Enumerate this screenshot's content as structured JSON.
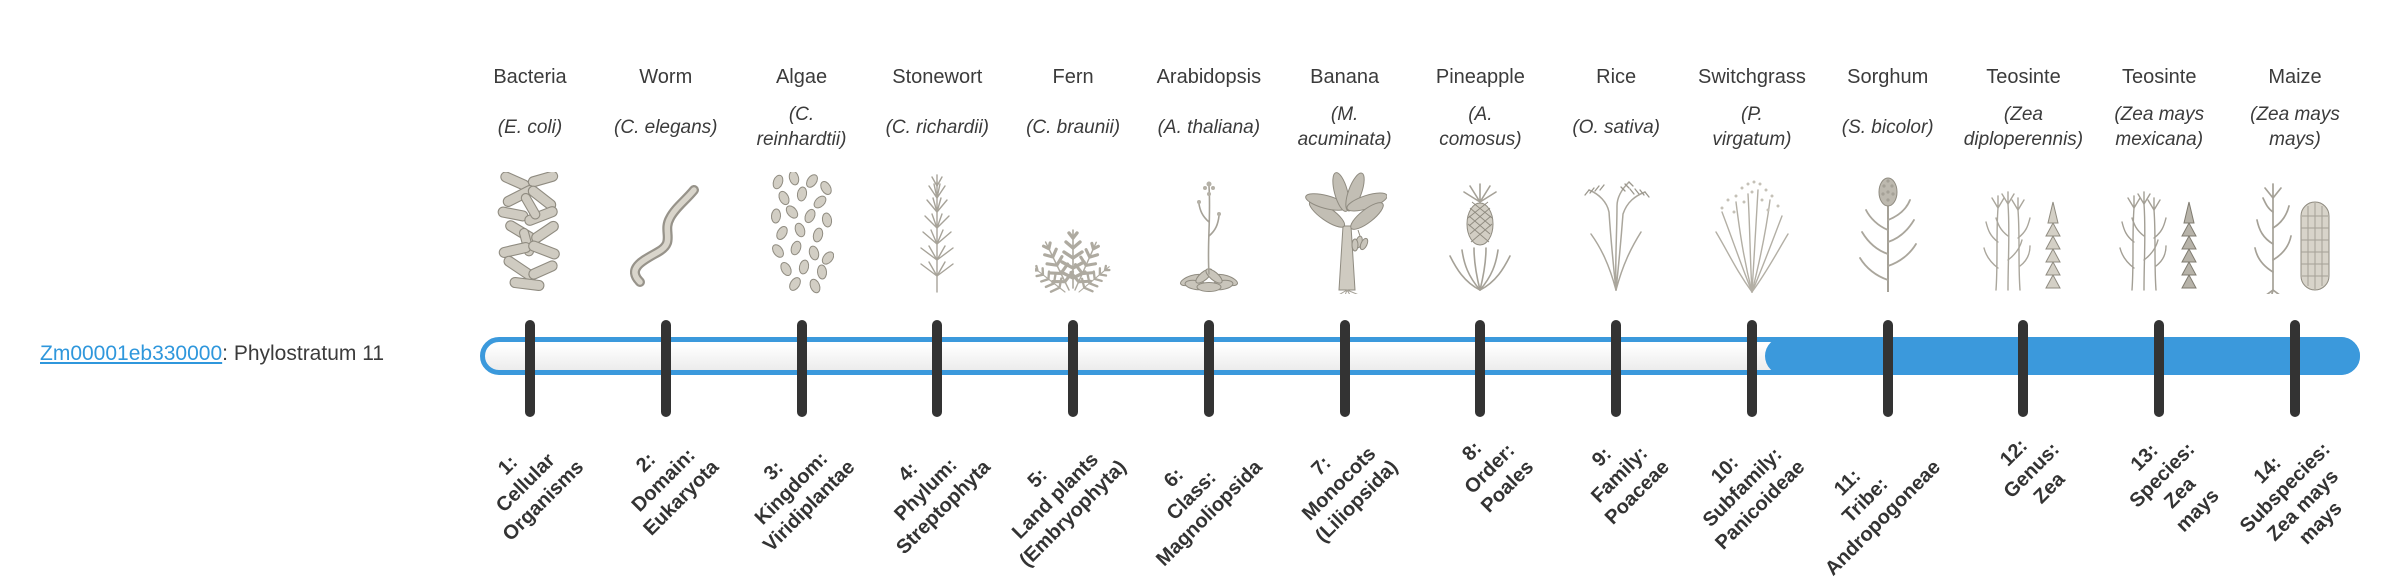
{
  "gene": {
    "id": "Zm00001eb330000",
    "suffix": ": Phylostratum 11",
    "full_label": "Zm00001eb330000: Phylostratum 11",
    "phylostratum": 11
  },
  "bar": {
    "filled_from_stratum": 11,
    "filled_to_stratum": 14,
    "total_strata": 14
  },
  "colors": {
    "bar_blue": "#3b99dc",
    "link_blue": "#2f97dc",
    "tick_dark": "#333333",
    "text_dark": "#3b3b3b"
  },
  "organisms": [
    {
      "name": "Bacteria",
      "species": "(E. coli)",
      "species_lines": [
        "(E. coli)"
      ],
      "icon": "bacteria-illustration"
    },
    {
      "name": "Worm",
      "species": "(C. elegans)",
      "species_lines": [
        "(C. elegans)"
      ],
      "icon": "worm-illustration"
    },
    {
      "name": "Algae",
      "species": "(C. reinhardtii)",
      "species_lines": [
        "(C.",
        "reinhardtii)"
      ],
      "icon": "algae-illustration"
    },
    {
      "name": "Stonewort",
      "species": "(C. richardii)",
      "species_lines": [
        "(C. richardii)"
      ],
      "icon": "stonewort-illustration"
    },
    {
      "name": "Fern",
      "species": "(C. braunii)",
      "species_lines": [
        "(C. braunii)"
      ],
      "icon": "fern-illustration"
    },
    {
      "name": "Arabidopsis",
      "species": "(A. thaliana)",
      "species_lines": [
        "(A. thaliana)"
      ],
      "icon": "arabidopsis-illustration"
    },
    {
      "name": "Banana",
      "species": "(M. acuminata)",
      "species_lines": [
        "(M.",
        "acuminata)"
      ],
      "icon": "banana-illustration"
    },
    {
      "name": "Pineapple",
      "species": "(A. comosus)",
      "species_lines": [
        "(A.",
        "comosus)"
      ],
      "icon": "pineapple-illustration"
    },
    {
      "name": "Rice",
      "species": "(O. sativa)",
      "species_lines": [
        "(O. sativa)"
      ],
      "icon": "rice-illustration"
    },
    {
      "name": "Switchgrass",
      "species": "(P. virgatum)",
      "species_lines": [
        "(P.",
        "virgatum)"
      ],
      "icon": "switchgrass-illustration"
    },
    {
      "name": "Sorghum",
      "species": "(S. bicolor)",
      "species_lines": [
        "(S. bicolor)"
      ],
      "icon": "sorghum-illustration"
    },
    {
      "name": "Teosinte",
      "species": "(Zea diploperennis)",
      "species_lines": [
        "(Zea",
        "diploperennis)"
      ],
      "icon": "teosinte-diploperennis-illustration"
    },
    {
      "name": "Teosinte",
      "species": "(Zea mays mexicana)",
      "species_lines": [
        "(Zea mays",
        "mexicana)"
      ],
      "icon": "teosinte-mexicana-illustration"
    },
    {
      "name": "Maize",
      "species": "(Zea mays mays)",
      "species_lines": [
        "(Zea mays",
        "mays)"
      ],
      "icon": "maize-illustration"
    }
  ],
  "strata": [
    {
      "full": "1: Cellular Organisms",
      "lines": [
        "1:",
        "Cellular",
        "Organisms"
      ]
    },
    {
      "full": "2: Domain: Eukaryota",
      "lines": [
        "2:",
        "Domain:",
        "Eukaryota"
      ]
    },
    {
      "full": "3: Kingdom: Viridiplantae",
      "lines": [
        "3:",
        "Kingdom:",
        "Viridiplantae"
      ]
    },
    {
      "full": "4: Phylum: Streptophyta",
      "lines": [
        "4:",
        "Phylum:",
        "Streptophyta"
      ]
    },
    {
      "full": "5: Land plants (Embryophyta)",
      "lines": [
        "5:",
        "Land plants",
        "(Embryophyta)"
      ]
    },
    {
      "full": "6: Class: Magnoliopsida",
      "lines": [
        "6:",
        "Class:",
        "Magnoliopsida"
      ]
    },
    {
      "full": "7: Monocots (Liliopsida)",
      "lines": [
        "7:",
        "Monocots",
        "(Liliopsida)"
      ]
    },
    {
      "full": "8: Order: Poales",
      "lines": [
        "8:",
        "Order:",
        "Poales"
      ]
    },
    {
      "full": "9: Family: Poaceae",
      "lines": [
        "9:",
        "Family:",
        "Poaceae"
      ]
    },
    {
      "full": "10: Subfamily: Panicoideae",
      "lines": [
        "10:",
        "Subfamily:",
        "Panicoideae"
      ]
    },
    {
      "full": "11: Tribe: Andropogoneae",
      "lines": [
        "11:",
        "Tribe:",
        "Andropogoneae"
      ]
    },
    {
      "full": "12: Genus: Zea",
      "lines": [
        "12:",
        "Genus:",
        "Zea"
      ]
    },
    {
      "full": "13: Species: Zea mays",
      "lines": [
        "13:",
        "Species:",
        "Zea",
        "mays"
      ]
    },
    {
      "full": "14: Subspecies: Zea mays mays",
      "lines": [
        "14:",
        "Subspecies:",
        "Zea mays",
        "mays"
      ]
    }
  ]
}
